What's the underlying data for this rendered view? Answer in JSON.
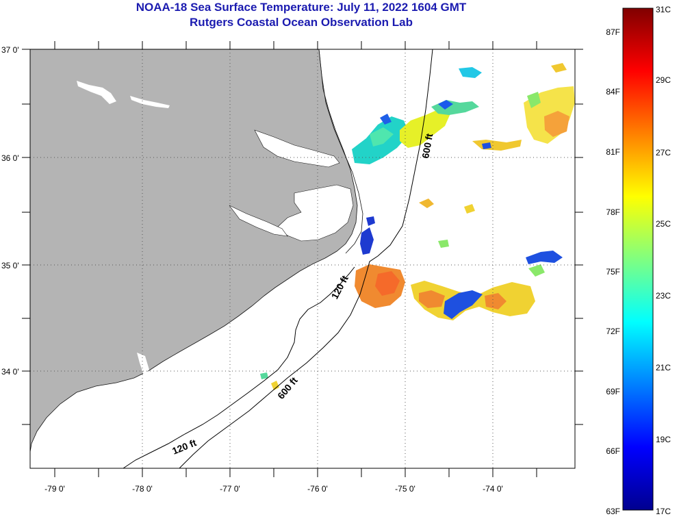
{
  "title": {
    "line1": "NOAA-18 Sea Surface Temperature:  July 11, 2022 1604 GMT",
    "line2": "Rutgers Coastal Ocean Observation Lab"
  },
  "axes": {
    "lat_labels": [
      "37 0'",
      "36 0'",
      "35 0'",
      "34 0'"
    ],
    "lon_labels": [
      "-79 0'",
      "-78 0'",
      "-77 0'",
      "-76 0'",
      "-75 0'",
      "-74 0'"
    ]
  },
  "isobaths": {
    "label_120_north": "120 ft",
    "label_120_south": "120 ft",
    "label_600_north": "600 ft",
    "label_600_south": "600 ft"
  },
  "colorbar": {
    "celsius_labels": [
      "31C",
      "29C",
      "27C",
      "25C",
      "23C",
      "21C",
      "19C",
      "17C"
    ],
    "fahrenheit_labels": [
      "87F",
      "84F",
      "81F",
      "78F",
      "75F",
      "72F",
      "69F",
      "66F",
      "63F"
    ]
  },
  "colors": {
    "land": "#b4b4b4",
    "title": "#1b1bb0",
    "colormap": [
      "#00008f",
      "#0000ff",
      "#0080ff",
      "#00ffff",
      "#80ff80",
      "#ffff00",
      "#ff8000",
      "#ff0000",
      "#800000"
    ]
  }
}
